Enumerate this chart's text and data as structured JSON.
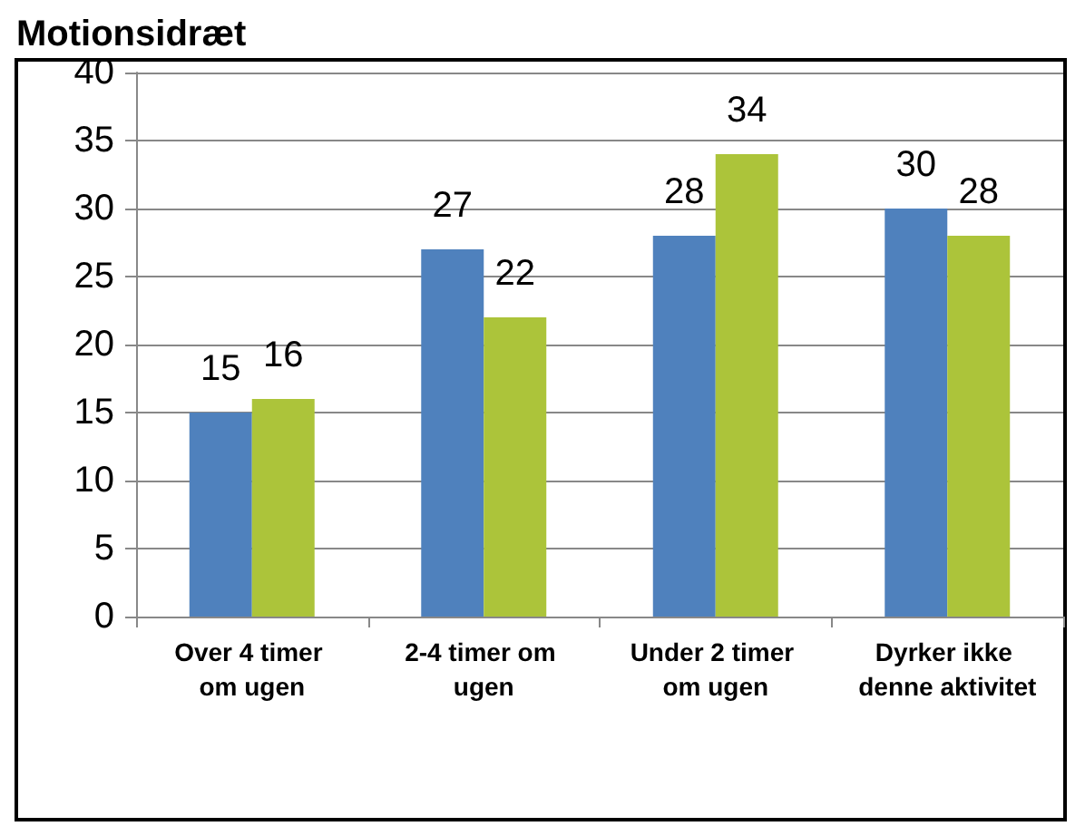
{
  "chart_data": {
    "type": "bar",
    "title": "Motionsidræt",
    "categories": [
      "Over 4 timer om ugen",
      "2-4 timer om ugen",
      "Under 2 timer om ugen",
      "Dyrker ikke denne aktivitet"
    ],
    "series": [
      {
        "color": "#4f81bd",
        "values": [
          15,
          27,
          28,
          30
        ]
      },
      {
        "color": "#acc43a",
        "values": [
          16,
          22,
          34,
          28
        ]
      }
    ],
    "ylim": [
      0,
      40
    ],
    "yticks": [
      0,
      5,
      10,
      15,
      20,
      25,
      30,
      35,
      40
    ],
    "grid": "y",
    "data_labels": true
  }
}
